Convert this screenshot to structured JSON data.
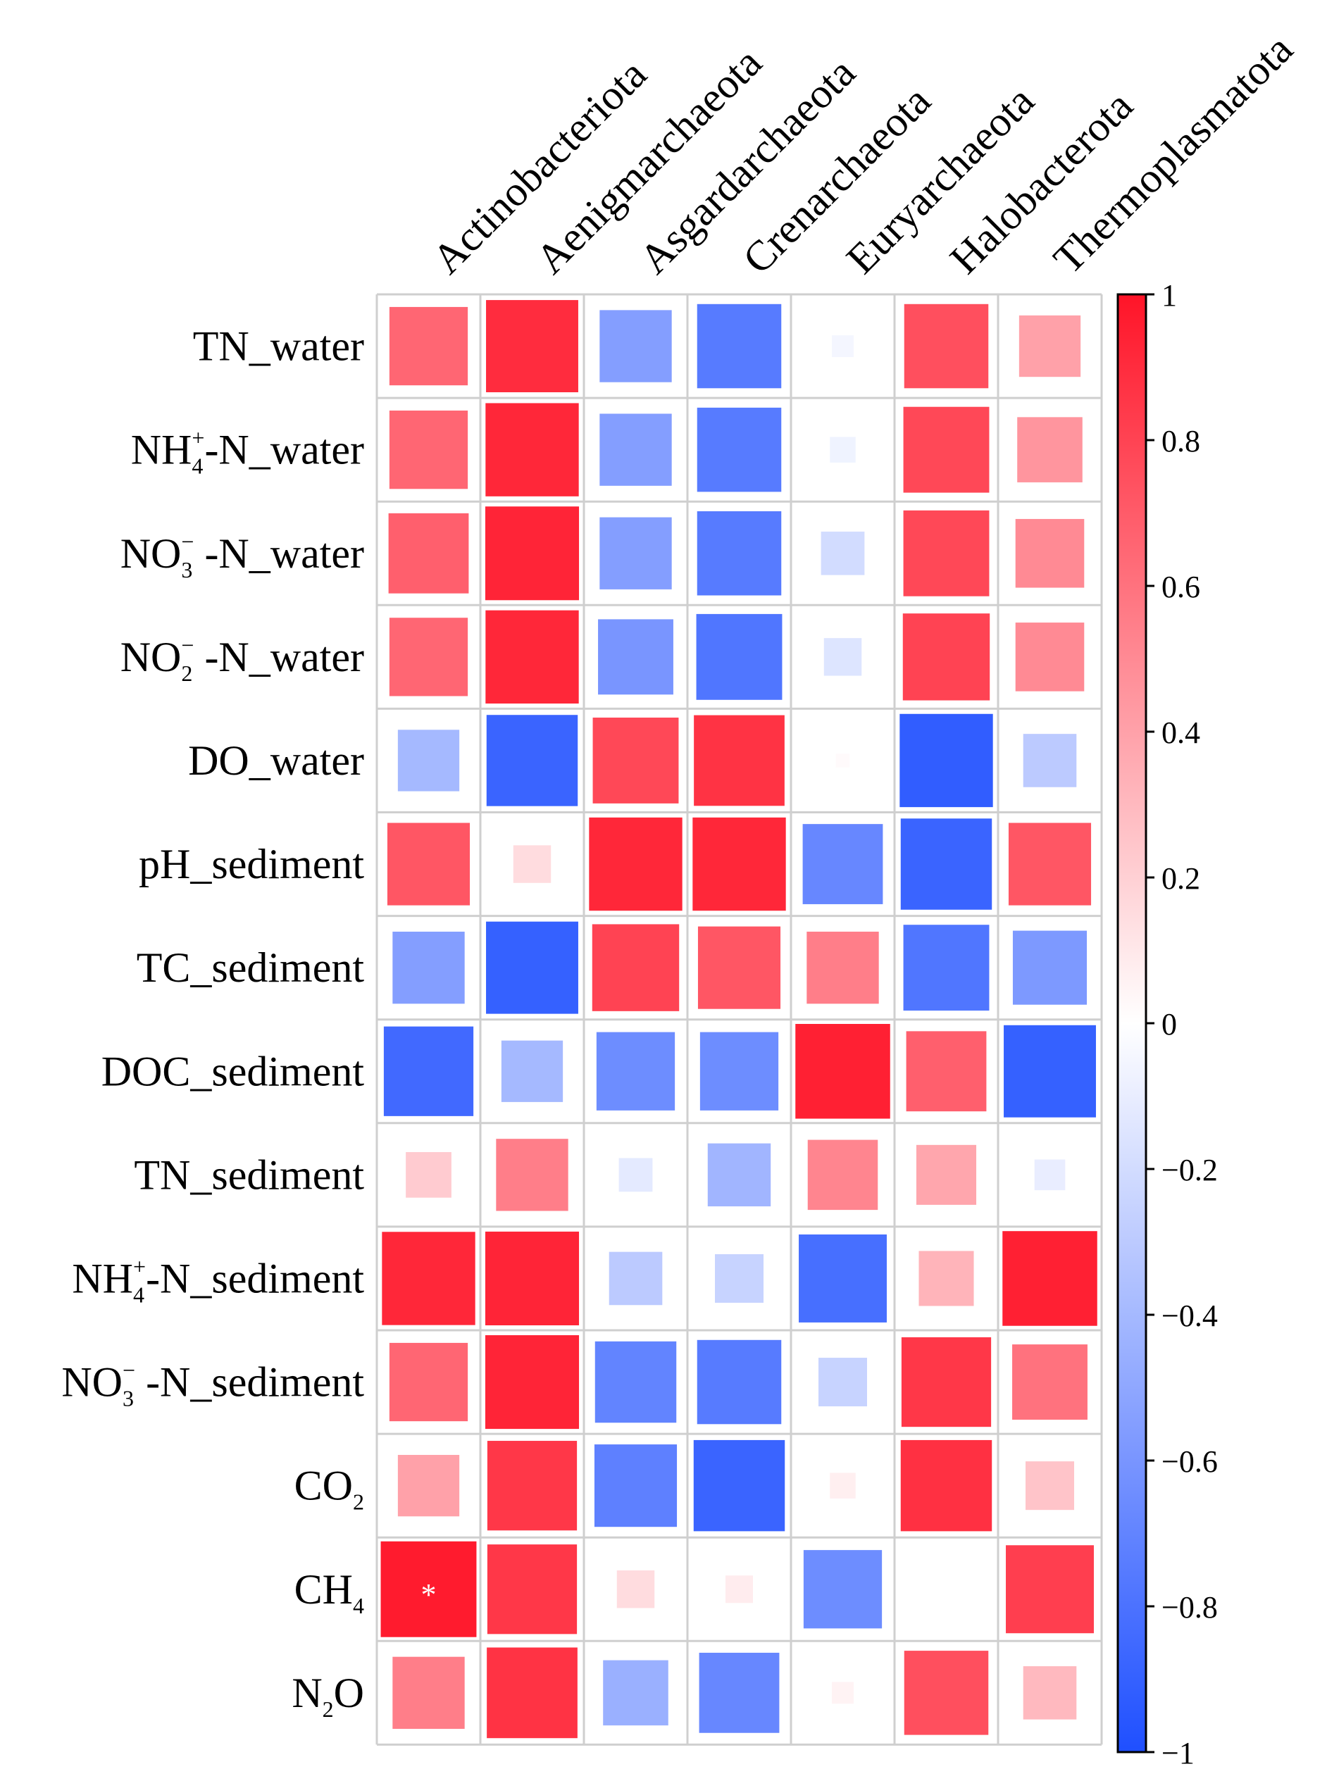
{
  "chart_data": {
    "type": "heatmap",
    "title": "",
    "columns": [
      "Actinobacteriota",
      "Aenigmarchaeota",
      "Asgardarchaeota",
      "Crenarchaeota",
      "Euryarchaeota",
      "Halobacterota",
      "Thermoplasmatota"
    ],
    "rows": [
      {
        "label": "TN_water",
        "parts": [
          {
            "t": "TN_water",
            "s": "n"
          }
        ]
      },
      {
        "label": "NH4+-N_water",
        "parts": [
          {
            "t": "NH",
            "s": "n"
          },
          {
            "t": "4",
            "s": "sub"
          },
          {
            "t": "+",
            "s": "sup"
          },
          {
            "t": "-N_water",
            "s": "n"
          }
        ]
      },
      {
        "label": "NO3− -N_water",
        "parts": [
          {
            "t": "NO",
            "s": "n"
          },
          {
            "t": "3",
            "s": "sub"
          },
          {
            "t": "−",
            "s": "sup"
          },
          {
            "t": " -N_water",
            "s": "n"
          }
        ]
      },
      {
        "label": "NO2− -N_water",
        "parts": [
          {
            "t": "NO",
            "s": "n"
          },
          {
            "t": "2",
            "s": "sub"
          },
          {
            "t": "−",
            "s": "sup"
          },
          {
            "t": " -N_water",
            "s": "n"
          }
        ]
      },
      {
        "label": "DO_water",
        "parts": [
          {
            "t": "DO_water",
            "s": "n"
          }
        ]
      },
      {
        "label": "pH_sediment",
        "parts": [
          {
            "t": "pH_sediment",
            "s": "n"
          }
        ]
      },
      {
        "label": "TC_sediment",
        "parts": [
          {
            "t": "TC_sediment",
            "s": "n"
          }
        ]
      },
      {
        "label": "DOC_sediment",
        "parts": [
          {
            "t": "DOC_sediment",
            "s": "n"
          }
        ]
      },
      {
        "label": "TN_sediment",
        "parts": [
          {
            "t": "TN_sediment",
            "s": "n"
          }
        ]
      },
      {
        "label": "NH4+-N_sediment",
        "parts": [
          {
            "t": "NH",
            "s": "n"
          },
          {
            "t": "4",
            "s": "sub"
          },
          {
            "t": "+",
            "s": "sup"
          },
          {
            "t": "-N_sediment",
            "s": "n"
          }
        ]
      },
      {
        "label": "NO3− -N_sediment",
        "parts": [
          {
            "t": "NO",
            "s": "n"
          },
          {
            "t": "3",
            "s": "sub"
          },
          {
            "t": "−",
            "s": "sup"
          },
          {
            "t": " -N_sediment",
            "s": "n"
          }
        ]
      },
      {
        "label": "CO2",
        "parts": [
          {
            "t": "CO",
            "s": "n"
          },
          {
            "t": "2",
            "s": "sub"
          }
        ]
      },
      {
        "label": "CH4",
        "parts": [
          {
            "t": "CH",
            "s": "n"
          },
          {
            "t": "4",
            "s": "sub"
          }
        ]
      },
      {
        "label": "N2O",
        "parts": [
          {
            "t": "N",
            "s": "n"
          },
          {
            "t": "2",
            "s": "sub"
          },
          {
            "t": "O",
            "s": "n"
          }
        ]
      }
    ],
    "values": [
      [
        0.65,
        0.9,
        -0.55,
        -0.75,
        -0.05,
        0.75,
        0.4
      ],
      [
        0.65,
        0.92,
        -0.55,
        -0.75,
        -0.07,
        0.78,
        0.45
      ],
      [
        0.68,
        0.93,
        -0.55,
        -0.75,
        -0.2,
        0.78,
        0.5
      ],
      [
        0.65,
        0.92,
        -0.6,
        -0.78,
        -0.15,
        0.8,
        0.5
      ],
      [
        -0.4,
        -0.88,
        0.78,
        0.87,
        0.02,
        -0.92,
        -0.3
      ],
      [
        0.72,
        0.15,
        0.92,
        0.92,
        -0.68,
        -0.88,
        0.72
      ],
      [
        -0.55,
        -0.9,
        0.8,
        0.72,
        0.55,
        -0.78,
        -0.58
      ],
      [
        -0.85,
        -0.4,
        -0.65,
        -0.65,
        0.95,
        0.68,
        -0.9
      ],
      [
        0.22,
        0.55,
        -0.12,
        -0.42,
        0.52,
        0.38,
        -0.1
      ],
      [
        0.92,
        0.93,
        -0.3,
        -0.25,
        -0.82,
        0.32,
        0.95
      ],
      [
        0.65,
        0.93,
        -0.7,
        -0.75,
        -0.25,
        0.85,
        0.6
      ],
      [
        0.4,
        0.85,
        -0.72,
        -0.88,
        0.07,
        0.88,
        0.25
      ],
      [
        0.97,
        0.85,
        0.15,
        0.08,
        -0.65,
        0.0,
        0.82
      ],
      [
        0.55,
        0.87,
        -0.45,
        -0.68,
        0.05,
        0.75,
        0.3
      ]
    ],
    "significance": [
      {
        "row": 12,
        "col": 0,
        "mark": "*"
      }
    ],
    "colorbar": {
      "min": -1,
      "max": 1,
      "ticks": [
        1,
        0.8,
        0.6,
        0.4,
        0.2,
        0,
        -0.2,
        -0.4,
        -0.6,
        -0.8,
        -1
      ],
      "tick_labels": [
        "1",
        "0.8",
        "0.6",
        "0.4",
        "0.2",
        "0",
        "−0.2",
        "−0.4",
        "−0.6",
        "−0.8",
        "−1"
      ],
      "colors": {
        "negative": "#1f4fff",
        "zero": "#ffffff",
        "positive": "#ff1428"
      }
    },
    "grid_color": "#cfcfcf"
  }
}
